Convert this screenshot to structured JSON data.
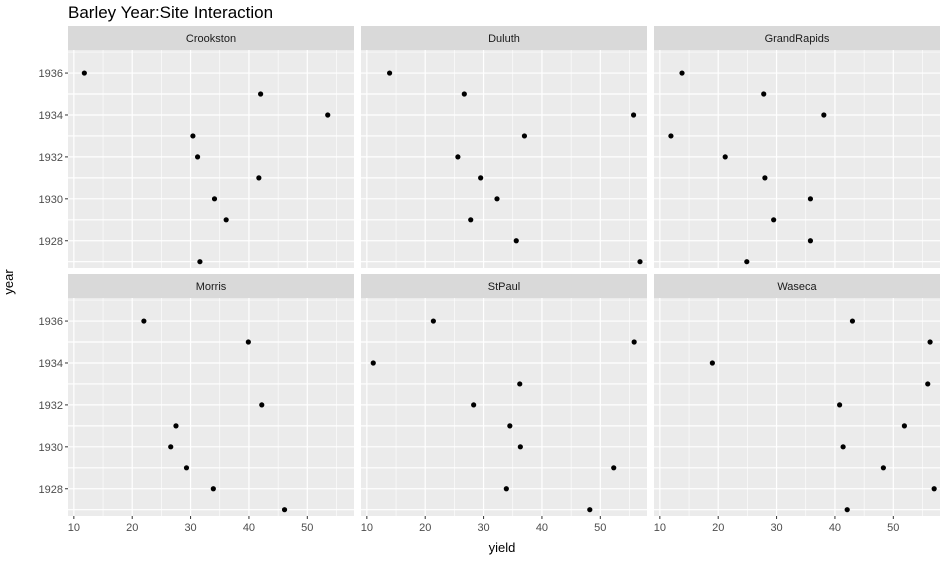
{
  "chart_data": {
    "type": "scatter",
    "title": "Barley Year:Site Interaction",
    "xlabel": "yield",
    "ylabel": "year",
    "xlim": [
      9,
      58
    ],
    "ylim": [
      1926.7,
      1937.1
    ],
    "x_ticks": [
      "10",
      "20",
      "30",
      "40",
      "50"
    ],
    "y_ticks": [
      "1928",
      "1930",
      "1932",
      "1934",
      "1936"
    ],
    "grid": true,
    "layout": "facets 3 columns x 2 rows",
    "colors": {
      "panel_bg": "#ebebeb",
      "strip_bg": "#d9d9d9",
      "grid": "#ffffff",
      "point": "#000000"
    },
    "panels": [
      {
        "site": "Crookston",
        "points": [
          {
            "year": 1936,
            "yield": 11.8
          },
          {
            "year": 1935,
            "yield": 42.0
          },
          {
            "year": 1934,
            "yield": 53.5
          },
          {
            "year": 1933,
            "yield": 30.4
          },
          {
            "year": 1932,
            "yield": 31.2
          },
          {
            "year": 1931,
            "yield": 41.7
          },
          {
            "year": 1930,
            "yield": 34.1
          },
          {
            "year": 1929,
            "yield": 36.1
          },
          {
            "year": 1928,
            "yield": null
          },
          {
            "year": 1927,
            "yield": 31.6
          }
        ]
      },
      {
        "site": "Duluth",
        "points": [
          {
            "year": 1936,
            "yield": 13.9
          },
          {
            "year": 1935,
            "yield": 26.7
          },
          {
            "year": 1934,
            "yield": 55.7
          },
          {
            "year": 1933,
            "yield": 37.0
          },
          {
            "year": 1932,
            "yield": 25.6
          },
          {
            "year": 1931,
            "yield": 29.5
          },
          {
            "year": 1930,
            "yield": 32.3
          },
          {
            "year": 1929,
            "yield": 27.8
          },
          {
            "year": 1928,
            "yield": 35.6
          },
          {
            "year": 1927,
            "yield": 56.8
          }
        ]
      },
      {
        "site": "GrandRapids",
        "points": [
          {
            "year": 1936,
            "yield": 13.8
          },
          {
            "year": 1935,
            "yield": 27.8
          },
          {
            "year": 1934,
            "yield": 38.1
          },
          {
            "year": 1933,
            "yield": 11.9
          },
          {
            "year": 1932,
            "yield": 21.2
          },
          {
            "year": 1931,
            "yield": 28.0
          },
          {
            "year": 1930,
            "yield": 35.8
          },
          {
            "year": 1929,
            "yield": 29.5
          },
          {
            "year": 1928,
            "yield": 35.8
          },
          {
            "year": 1927,
            "yield": 24.9
          }
        ]
      },
      {
        "site": "Morris",
        "points": [
          {
            "year": 1936,
            "yield": 22.0
          },
          {
            "year": 1935,
            "yield": 39.9
          },
          {
            "year": 1934,
            "yield": null
          },
          {
            "year": 1933,
            "yield": null
          },
          {
            "year": 1932,
            "yield": 42.2
          },
          {
            "year": 1931,
            "yield": 27.5
          },
          {
            "year": 1930,
            "yield": 26.6
          },
          {
            "year": 1929,
            "yield": 29.3
          },
          {
            "year": 1928,
            "yield": 33.9
          },
          {
            "year": 1927,
            "yield": 46.1
          }
        ]
      },
      {
        "site": "StPaul",
        "points": [
          {
            "year": 1936,
            "yield": 21.4
          },
          {
            "year": 1935,
            "yield": 55.8
          },
          {
            "year": 1934,
            "yield": 11.1
          },
          {
            "year": 1933,
            "yield": 36.2
          },
          {
            "year": 1932,
            "yield": 28.3
          },
          {
            "year": 1931,
            "yield": 34.5
          },
          {
            "year": 1930,
            "yield": 36.3
          },
          {
            "year": 1929,
            "yield": 52.3
          },
          {
            "year": 1928,
            "yield": 33.9
          },
          {
            "year": 1927,
            "yield": 48.2
          }
        ]
      },
      {
        "site": "Waseca",
        "points": [
          {
            "year": 1936,
            "yield": 43.0
          },
          {
            "year": 1935,
            "yield": 56.3
          },
          {
            "year": 1934,
            "yield": 19.0
          },
          {
            "year": 1933,
            "yield": 55.9
          },
          {
            "year": 1932,
            "yield": 40.8
          },
          {
            "year": 1931,
            "yield": 51.9
          },
          {
            "year": 1930,
            "yield": 41.4
          },
          {
            "year": 1929,
            "yield": 48.3
          },
          {
            "year": 1928,
            "yield": 57.0
          },
          {
            "year": 1927,
            "yield": 42.1
          }
        ]
      }
    ]
  }
}
